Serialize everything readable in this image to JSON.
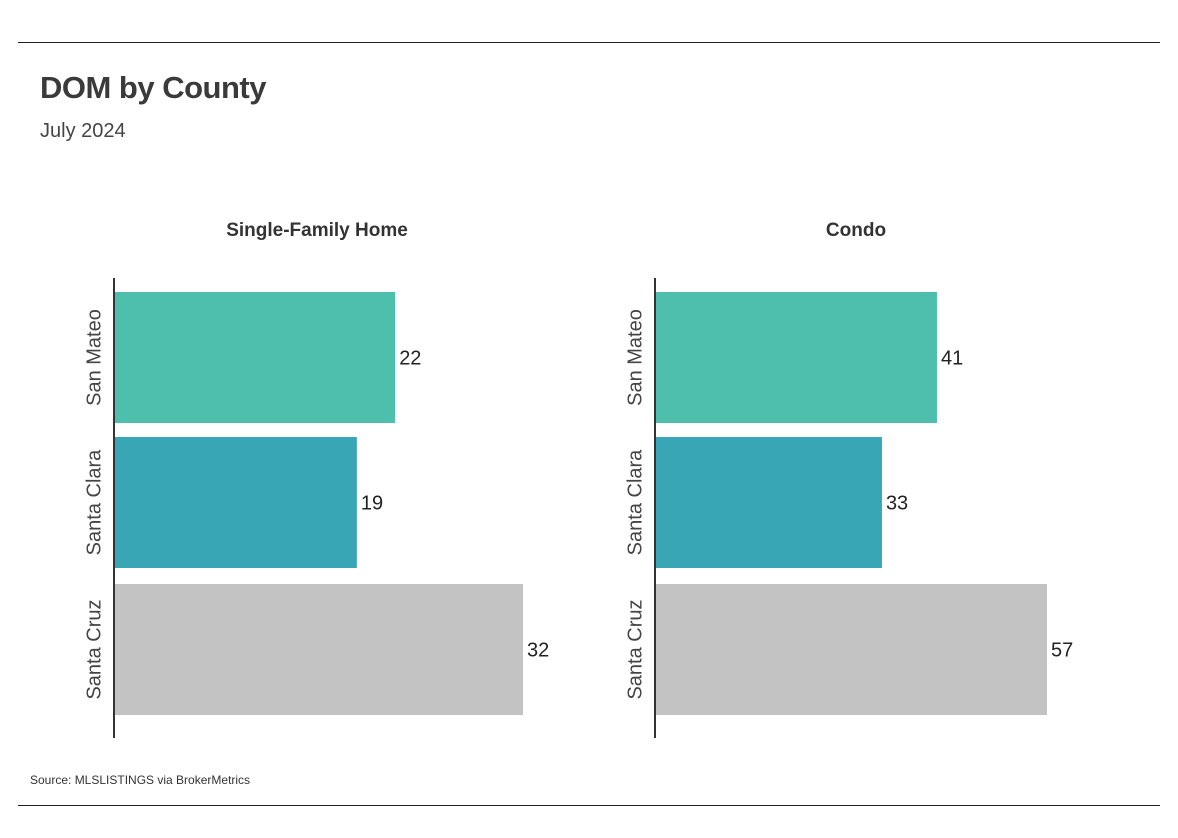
{
  "title": "DOM by County",
  "subtitle": "July 2024",
  "source": "Source:  MLSLISTINGS via BrokerMetrics",
  "chart_data": [
    {
      "type": "bar",
      "orientation": "horizontal",
      "title": "Single-Family Home",
      "categories": [
        "San Mateo",
        "Santa Clara",
        "Santa Cruz"
      ],
      "values": [
        22,
        19,
        32
      ],
      "colors": [
        "#4fbfad",
        "#38a6b5",
        "#c3c3c3"
      ],
      "xlim": [
        0,
        32
      ],
      "grid": false,
      "data_labels": true
    },
    {
      "type": "bar",
      "orientation": "horizontal",
      "title": "Condo",
      "categories": [
        "San Mateo",
        "Santa Clara",
        "Santa Cruz"
      ],
      "values": [
        41,
        33,
        57
      ],
      "colors": [
        "#4fbfad",
        "#38a6b5",
        "#c3c3c3"
      ],
      "xlim": [
        0,
        57
      ],
      "grid": false,
      "data_labels": true
    }
  ]
}
